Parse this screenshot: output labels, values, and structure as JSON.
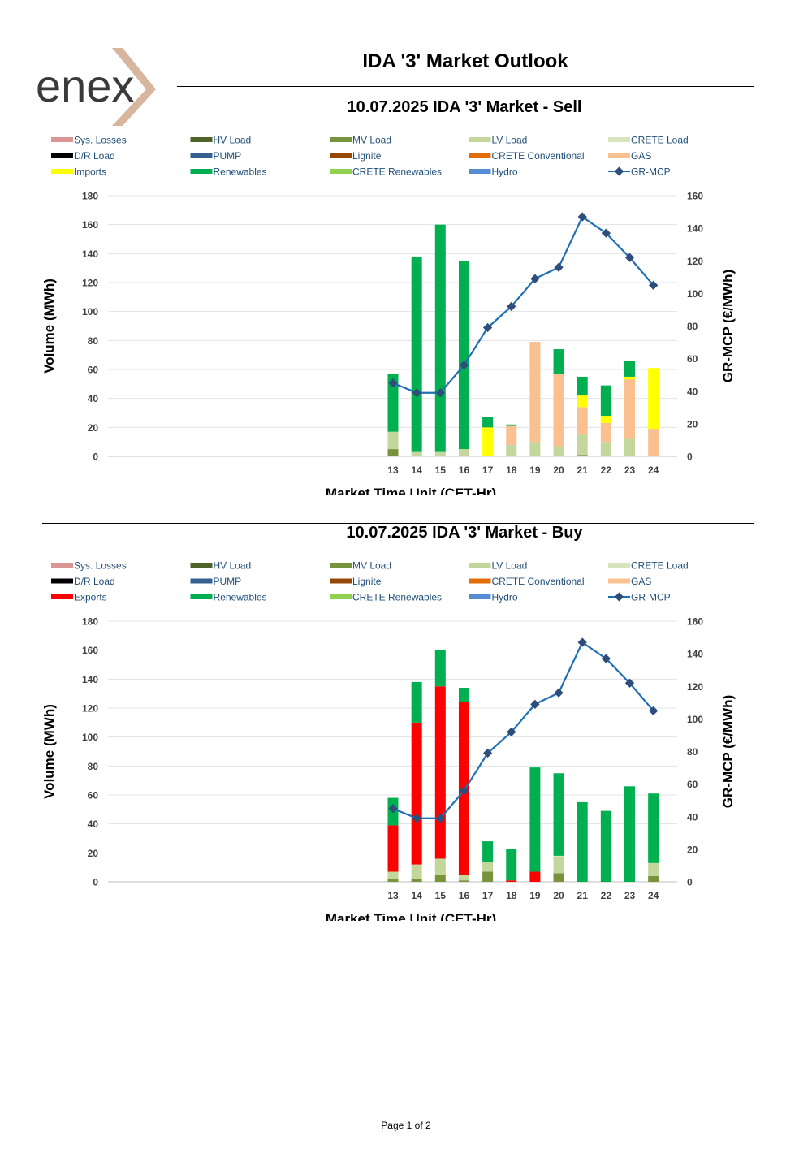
{
  "page": {
    "title": "IDA '3' Market Outlook",
    "logo_text": "enex",
    "footer": "Page 1 of 2"
  },
  "chart_data": [
    {
      "type": "bar",
      "stacked": true,
      "id": "sell",
      "title": "10.07.2025  IDA '3' Market - Sell",
      "xlabel": "Market Time Unit (CET-Hr)",
      "ylabel": "Volume (MWh)",
      "y2label": "GR-MCP (€/MWh)",
      "ylim": [
        0,
        180
      ],
      "y2lim": [
        0,
        160
      ],
      "yticks": [
        0,
        20,
        40,
        60,
        80,
        100,
        120,
        140,
        160,
        180
      ],
      "y2ticks": [
        0,
        20,
        40,
        60,
        80,
        100,
        120,
        140,
        160
      ],
      "categories": [
        "13",
        "14",
        "15",
        "16",
        "17",
        "18",
        "19",
        "20",
        "21",
        "22",
        "23",
        "24"
      ],
      "legend": [
        {
          "name": "Sys. Losses",
          "color": "#d99694",
          "kind": "bar"
        },
        {
          "name": "HV Load",
          "color": "#4f6228",
          "kind": "bar"
        },
        {
          "name": "MV Load",
          "color": "#77933c",
          "kind": "bar"
        },
        {
          "name": "LV Load",
          "color": "#c3d69b",
          "kind": "bar"
        },
        {
          "name": "CRETE Load",
          "color": "#d7e4bd",
          "kind": "bar"
        },
        {
          "name": "D/R Load",
          "color": "#000000",
          "kind": "bar"
        },
        {
          "name": "PUMP",
          "color": "#366092",
          "kind": "bar"
        },
        {
          "name": "Lignite",
          "color": "#974806",
          "kind": "bar"
        },
        {
          "name": "CRETE Conventional",
          "color": "#e36c09",
          "kind": "bar"
        },
        {
          "name": "GAS",
          "color": "#fac090",
          "kind": "bar"
        },
        {
          "name": "Imports",
          "color": "#ffff00",
          "kind": "bar"
        },
        {
          "name": "Renewables",
          "color": "#00b050",
          "kind": "bar"
        },
        {
          "name": "CRETE Renewables",
          "color": "#92d050",
          "kind": "bar"
        },
        {
          "name": "Hydro",
          "color": "#558ed5",
          "kind": "bar"
        },
        {
          "name": "GR-MCP",
          "color": "#1f6fb4",
          "kind": "line",
          "marker": "#2e4d7b"
        }
      ],
      "series": [
        {
          "name": "MV Load",
          "color": "#77933c",
          "values": [
            5,
            0,
            0,
            0,
            0,
            0,
            0,
            0,
            1,
            0,
            0,
            0
          ]
        },
        {
          "name": "LV Load",
          "color": "#c3d69b",
          "values": [
            12,
            3,
            3,
            5,
            0,
            8,
            10,
            7,
            14,
            10,
            12,
            0
          ]
        },
        {
          "name": "GAS",
          "color": "#fac090",
          "values": [
            0,
            0,
            0,
            0,
            0,
            13,
            69,
            50,
            19,
            13,
            41,
            19
          ]
        },
        {
          "name": "Imports",
          "color": "#ffff00",
          "values": [
            0,
            0,
            0,
            0,
            20,
            0,
            0,
            0,
            8,
            5,
            2,
            42
          ]
        },
        {
          "name": "Renewables",
          "color": "#00b050",
          "values": [
            40,
            135,
            157,
            130,
            7,
            1,
            0,
            17,
            13,
            21,
            11,
            0
          ]
        }
      ],
      "price": {
        "name": "GR-MCP",
        "values": [
          45,
          39,
          39,
          56,
          79,
          92,
          109,
          116,
          147,
          137,
          122,
          105
        ]
      }
    },
    {
      "type": "bar",
      "stacked": true,
      "id": "buy",
      "title": "10.07.2025  IDA '3' Market - Buy",
      "xlabel": "Market Time Unit (CET-Hr)",
      "ylabel": "Volume (MWh)",
      "y2label": "GR-MCP (€/MWh)",
      "ylim": [
        0,
        180
      ],
      "y2lim": [
        0,
        160
      ],
      "yticks": [
        0,
        20,
        40,
        60,
        80,
        100,
        120,
        140,
        160,
        180
      ],
      "y2ticks": [
        0,
        20,
        40,
        60,
        80,
        100,
        120,
        140,
        160
      ],
      "categories": [
        "13",
        "14",
        "15",
        "16",
        "17",
        "18",
        "19",
        "20",
        "21",
        "22",
        "23",
        "24"
      ],
      "legend": [
        {
          "name": "Sys. Losses",
          "color": "#d99694",
          "kind": "bar"
        },
        {
          "name": "HV Load",
          "color": "#4f6228",
          "kind": "bar"
        },
        {
          "name": "MV Load",
          "color": "#77933c",
          "kind": "bar"
        },
        {
          "name": "LV Load",
          "color": "#c3d69b",
          "kind": "bar"
        },
        {
          "name": "CRETE Load",
          "color": "#d7e4bd",
          "kind": "bar"
        },
        {
          "name": "D/R Load",
          "color": "#000000",
          "kind": "bar"
        },
        {
          "name": "PUMP",
          "color": "#366092",
          "kind": "bar"
        },
        {
          "name": "Lignite",
          "color": "#974806",
          "kind": "bar"
        },
        {
          "name": "CRETE Conventional",
          "color": "#e36c09",
          "kind": "bar"
        },
        {
          "name": "GAS",
          "color": "#fac090",
          "kind": "bar"
        },
        {
          "name": "Exports",
          "color": "#ff0000",
          "kind": "bar"
        },
        {
          "name": "Renewables",
          "color": "#00b050",
          "kind": "bar"
        },
        {
          "name": "CRETE Renewables",
          "color": "#92d050",
          "kind": "bar"
        },
        {
          "name": "Hydro",
          "color": "#558ed5",
          "kind": "bar"
        },
        {
          "name": "GR-MCP",
          "color": "#1f6fb4",
          "kind": "line",
          "marker": "#2e4d7b"
        }
      ],
      "series": [
        {
          "name": "MV Load",
          "color": "#77933c",
          "values": [
            2,
            2,
            5,
            1,
            7,
            0,
            0,
            6,
            0,
            0,
            0,
            4
          ]
        },
        {
          "name": "LV Load",
          "color": "#c3d69b",
          "values": [
            5,
            10,
            11,
            4,
            7,
            0,
            0,
            11,
            0,
            0,
            0,
            9
          ]
        },
        {
          "name": "CRETE Load",
          "color": "#d7e4bd",
          "values": [
            0,
            0,
            0,
            0,
            0,
            0,
            0,
            1,
            0,
            0,
            0,
            0
          ]
        },
        {
          "name": "Exports",
          "color": "#ff0000",
          "values": [
            32,
            98,
            119,
            119,
            0,
            1,
            7,
            0,
            0,
            0,
            0,
            0
          ]
        },
        {
          "name": "Renewables",
          "color": "#00b050",
          "values": [
            19,
            28,
            25,
            10,
            14,
            22,
            72,
            57,
            55,
            49,
            66,
            48
          ]
        }
      ],
      "price": {
        "name": "GR-MCP",
        "values": [
          45,
          39,
          39,
          56,
          79,
          92,
          109,
          116,
          147,
          137,
          122,
          105
        ]
      }
    }
  ]
}
